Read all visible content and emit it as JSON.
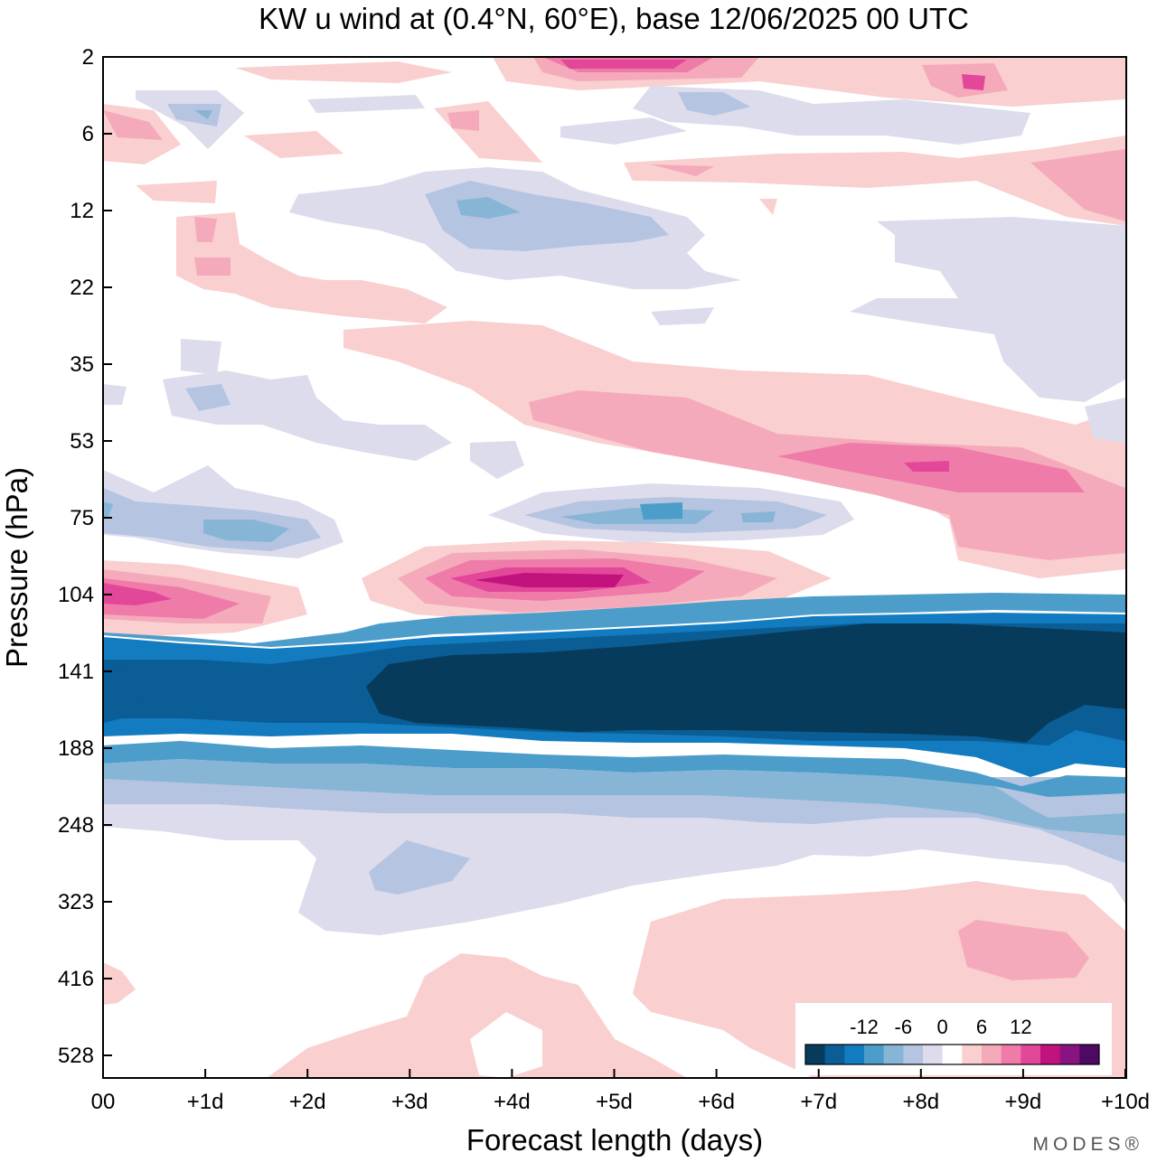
{
  "chart_data": {
    "type": "heatmap",
    "title": "KW u wind at (0.4°N, 60°E),  base 12/06/2025  00 UTC",
    "xlabel": "Forecast length (days)",
    "ylabel": "Pressure (hPa)",
    "x_tick_labels": [
      "00",
      "+1d",
      "+2d",
      "+3d",
      "+4d",
      "+5d",
      "+6d",
      "+7d",
      "+8d",
      "+9d",
      "+10d"
    ],
    "y_tick_labels": [
      "2",
      "6",
      "12",
      "22",
      "35",
      "53",
      "75",
      "104",
      "141",
      "188",
      "248",
      "323",
      "416",
      "528"
    ],
    "xlim": [
      0,
      10
    ],
    "y_axis": "pressure, log-like scale, top 2 hPa to bottom ~650 hPa",
    "colorbar": {
      "tick_labels": [
        "-12",
        "-6",
        "0",
        "6",
        "12"
      ],
      "levels": [
        -18,
        -15,
        -12,
        -9,
        -6,
        -3,
        0,
        3,
        6,
        9,
        12,
        15,
        18
      ],
      "colors": [
        "#063b5c",
        "#0b5d95",
        "#137bbf",
        "#4d9dcb",
        "#87b5d6",
        "#b5c4e0",
        "#dcdcec",
        "#ffffff",
        "#f9cfcf",
        "#f5aabb",
        "#ef7ba9",
        "#e34799",
        "#c2127d",
        "#8a1382",
        "#4c0a63"
      ]
    },
    "features": [
      {
        "label": "strong easterly core",
        "level": "< -18",
        "pressure_hPa": [
          110,
          175
        ],
        "days": [
          0,
          10
        ]
      },
      {
        "label": "westerly maximum",
        "level": "> 15",
        "pressure_hPa": [
          95,
          110
        ],
        "days": [
          3,
          5
        ]
      },
      {
        "label": "westerly band",
        "level": "3 to 12",
        "pressure_hPa": [
          45,
          60
        ],
        "days": [
          6,
          10
        ]
      },
      {
        "label": "easterly patch",
        "level": "-3 to -9",
        "pressure_hPa": [
          70,
          80
        ],
        "days": [
          4,
          7
        ]
      }
    ]
  },
  "brand": "MODES®"
}
